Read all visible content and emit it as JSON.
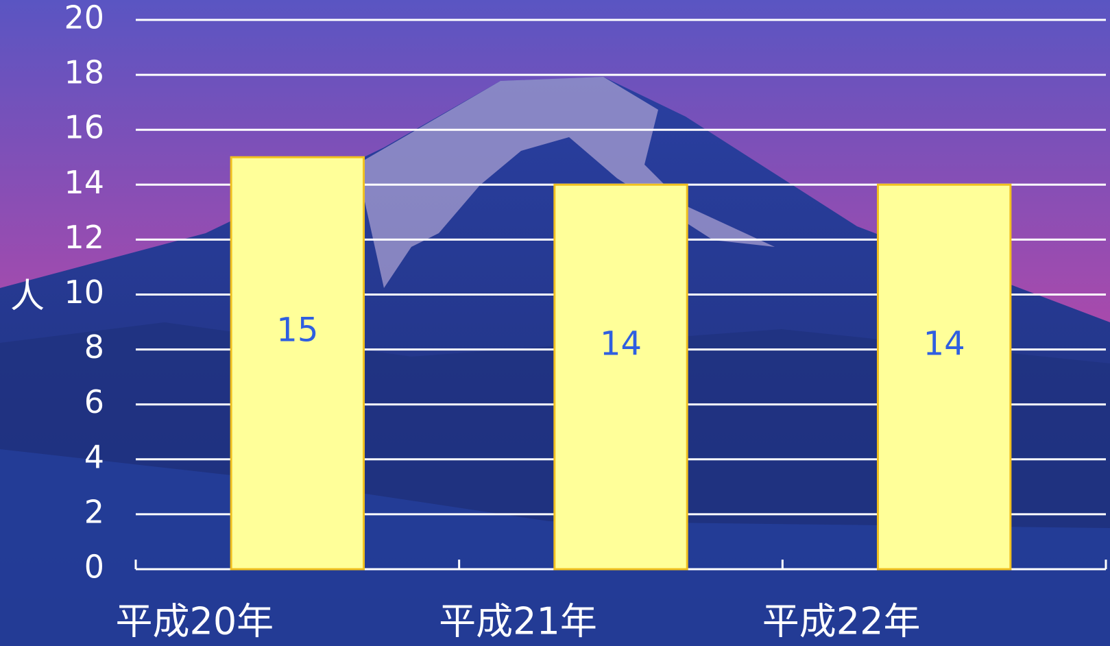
{
  "chart_data": {
    "type": "bar",
    "y_label": "人",
    "categories": [
      "平成20年",
      "平成21年",
      "平成22年"
    ],
    "values": [
      15,
      14,
      14
    ],
    "color": "#ffff99",
    "edge_color": "#f0c020",
    "label_color": "#2f5fe0",
    "ylim": [
      0,
      20
    ],
    "yticks": [
      0,
      2,
      4,
      6,
      8,
      10,
      12,
      14,
      16,
      18,
      20
    ],
    "grid": true
  }
}
